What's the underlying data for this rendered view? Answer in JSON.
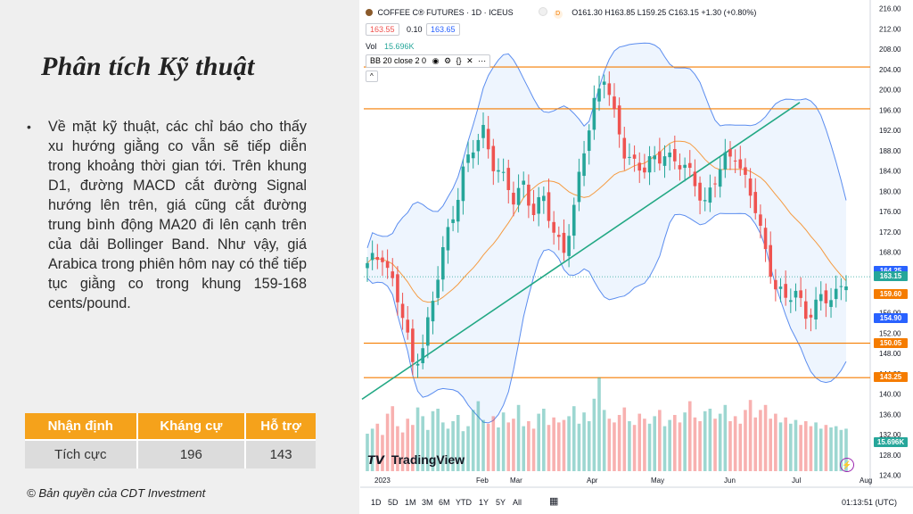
{
  "slide": {
    "title": "Phân tích Kỹ thuật",
    "bullet": "Về mặt kỹ thuật, các chỉ báo cho thấy xu hướng giằng co vẫn sẽ tiếp diễn trong khoảng thời gian tới. Trên khung D1, đường MACD cắt đường Signal hướng lên trên, giá cũng cắt đường trung bình động MA20 đi lên cạnh trên của dải Bollinger Band. Như vậy, giá Arabica trong phiên hôm nay có thể tiếp tục giằng co trong khung 159-168 cents/pound.",
    "table": {
      "headers": [
        "Nhận định",
        "Kháng cự",
        "Hỗ trợ"
      ],
      "row": [
        "Tích cực",
        "196",
        "143"
      ]
    },
    "copyright": "© Bản quyền của CDT Investment"
  },
  "chart_header": {
    "symbol": "COFFEE C® FUTURES · 1D · ICEUS",
    "ohlc": "O161.30 H163.85 L159.25 C163.15 +1.30 (+0.80%)",
    "bid": "163.55",
    "spread": "0.10",
    "ask": "163.65",
    "vol_label": "Vol",
    "vol_value": "15.696K",
    "indicator": "BB 20 close 2 0",
    "collapse": "^",
    "logo": "TradingView"
  },
  "colors": {
    "up": "#26a69a",
    "down": "#ef5350",
    "level": "#f57c00",
    "band": "#5b8def",
    "ma": "#f59b42",
    "trend": "#22a884"
  },
  "chart_data": {
    "type": "candlestick",
    "title": "COFFEE C® FUTURES · 1D · ICEUS",
    "x_labels": [
      "2023",
      "Feb",
      "Mar",
      "Apr",
      "May",
      "Jun",
      "Jul",
      "Aug"
    ],
    "y_ticks": [
      124,
      128,
      132,
      136,
      140,
      144,
      148,
      152,
      156,
      160,
      164,
      168,
      172,
      176,
      180,
      184,
      188,
      192,
      196,
      200,
      204,
      208,
      212,
      216
    ],
    "ylim": [
      122,
      217
    ],
    "horizontal_levels": [
      204.5,
      196.25,
      150.05,
      143.25
    ],
    "price_labels": [
      {
        "value": "164.25",
        "price": 164.25,
        "color": "#2962ff"
      },
      {
        "value": "163.15",
        "price": 163.15,
        "color": "#26a69a"
      },
      {
        "value": "159.60",
        "price": 159.6,
        "color": "#f57c00"
      },
      {
        "value": "154.90",
        "price": 154.9,
        "color": "#2962ff"
      },
      {
        "value": "150.05",
        "price": 150.05,
        "color": "#f57c00"
      },
      {
        "value": "143.25",
        "price": 143.25,
        "color": "#f57c00"
      },
      {
        "value": "15.696K",
        "price": 130.4,
        "color": "#26a69a"
      }
    ],
    "close_path": [
      [
        0,
        165
      ],
      [
        3,
        168
      ],
      [
        5,
        162
      ],
      [
        7,
        155
      ],
      [
        9,
        146
      ],
      [
        11,
        150
      ],
      [
        13,
        158
      ],
      [
        15,
        168
      ],
      [
        17,
        176
      ],
      [
        19,
        184
      ],
      [
        21,
        188
      ],
      [
        23,
        192
      ],
      [
        25,
        186
      ],
      [
        27,
        182
      ],
      [
        29,
        178
      ],
      [
        31,
        182
      ],
      [
        33,
        176
      ],
      [
        35,
        178
      ],
      [
        37,
        172
      ],
      [
        39,
        169
      ],
      [
        41,
        176
      ],
      [
        43,
        188
      ],
      [
        45,
        198
      ],
      [
        47,
        203
      ],
      [
        49,
        194
      ],
      [
        51,
        188
      ],
      [
        53,
        186
      ],
      [
        55,
        184
      ],
      [
        57,
        186
      ],
      [
        59,
        188
      ],
      [
        61,
        186
      ],
      [
        63,
        184
      ],
      [
        65,
        182
      ],
      [
        67,
        178
      ],
      [
        69,
        182
      ],
      [
        71,
        186
      ],
      [
        73,
        188
      ],
      [
        75,
        182
      ],
      [
        77,
        176
      ],
      [
        79,
        168
      ],
      [
        81,
        162
      ],
      [
        83,
        158
      ],
      [
        85,
        160
      ],
      [
        87,
        156
      ],
      [
        89,
        158
      ],
      [
        91,
        158
      ],
      [
        93,
        160
      ],
      [
        95,
        163.15
      ]
    ],
    "volume": [
      3.0,
      3.4,
      3.8,
      2.9,
      4.6,
      5.2,
      3.6,
      3.1,
      4.2,
      3.7,
      5.1,
      4.4,
      3.3,
      4.8,
      5.0,
      3.9,
      3.4,
      4.0,
      4.5,
      3.2,
      3.6,
      4.9,
      5.6,
      4.1,
      3.8,
      4.4,
      3.5,
      4.7,
      3.9,
      4.2,
      5.3,
      3.6,
      4.0,
      3.4,
      4.6,
      5.0,
      3.7,
      4.3,
      3.9,
      4.1,
      4.4,
      5.2,
      3.8,
      4.7,
      4.0,
      5.8,
      7.5,
      4.9,
      4.2,
      3.9,
      4.5,
      5.1,
      4.0,
      3.7,
      4.6,
      4.2,
      3.8,
      4.4,
      4.9,
      3.6,
      4.1,
      4.5,
      3.9,
      4.7,
      5.6,
      4.3,
      4.0,
      4.8,
      5.0,
      4.2,
      4.6,
      5.3,
      4.0,
      4.4,
      3.8,
      4.9,
      5.7,
      4.3,
      4.9,
      5.3,
      4.2,
      4.6,
      3.9,
      4.3,
      3.8,
      4.1,
      3.7,
      4.0,
      3.6,
      3.9,
      3.4,
      3.7,
      3.5,
      3.6,
      3.3,
      3.4
    ]
  },
  "bottom_bar": {
    "ranges": [
      "1D",
      "5D",
      "1M",
      "3M",
      "6M",
      "YTD",
      "1Y",
      "5Y",
      "All"
    ],
    "time": "01:13:51 (UTC)"
  }
}
